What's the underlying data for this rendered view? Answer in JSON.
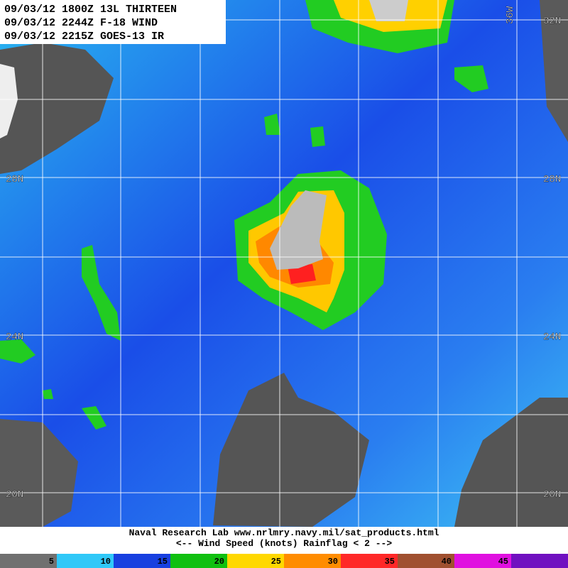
{
  "header": {
    "lines": [
      "09/03/12 1800Z 13L THIRTEEN",
      "09/03/12 2244Z F-18 WIND",
      "09/03/12 2215Z GOES-13 IR"
    ]
  },
  "map": {
    "lat_labels": [
      "32N",
      "28N",
      "24N",
      "20N"
    ],
    "lon_labels": [
      "36W"
    ]
  },
  "footer": {
    "lines": [
      "Naval Research Lab  www.nrlmry.navy.mil/sat_products.html",
      "<--   Wind Speed (knots) Rainflag < 2  -->"
    ]
  },
  "colorbar": {
    "labels": [
      "5",
      "10",
      "15",
      "20",
      "25",
      "30",
      "35",
      "40",
      "45"
    ]
  }
}
